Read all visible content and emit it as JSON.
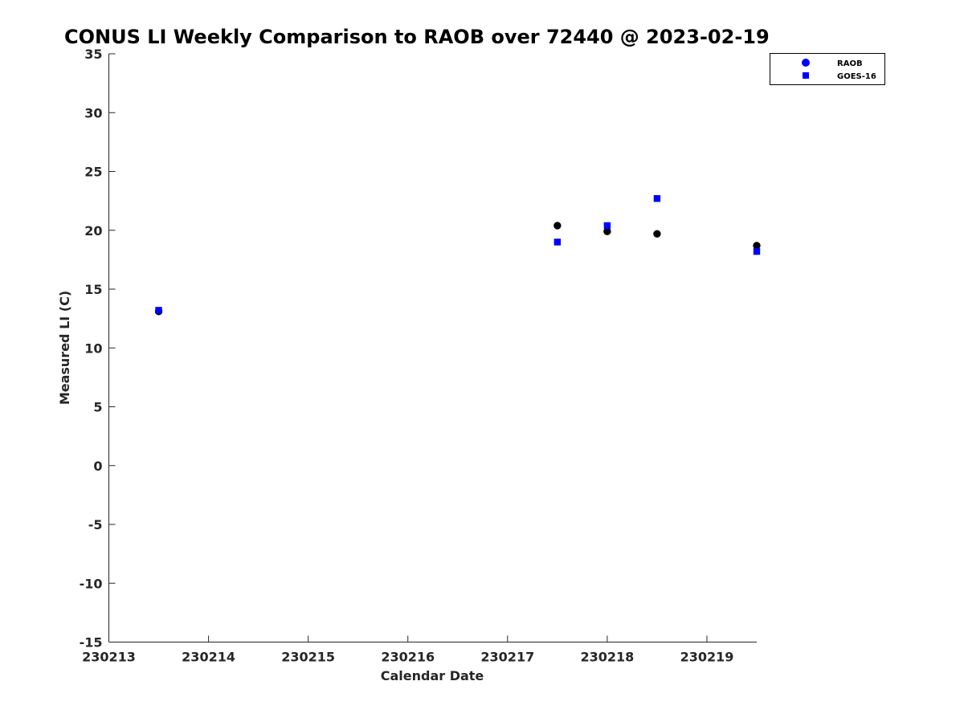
{
  "chart_data": {
    "type": "scatter",
    "title": "CONUS LI Weekly Comparison to RAOB over 72440 @ 2023-02-19",
    "xlabel": "Calendar Date",
    "ylabel": "Measured LI (C)",
    "x_ticks": [
      "230213",
      "230214",
      "230215",
      "230216",
      "230217",
      "230218",
      "230219"
    ],
    "x_tick_values": [
      0,
      1,
      2,
      3,
      4,
      5,
      6
    ],
    "xlim": [
      0,
      6.5
    ],
    "y_ticks": [
      "35",
      "30",
      "25",
      "20",
      "15",
      "10",
      "5",
      "0",
      "-5",
      "-10",
      "-15"
    ],
    "y_tick_values": [
      35,
      30,
      25,
      20,
      15,
      10,
      5,
      0,
      -5,
      -10,
      -15
    ],
    "ylim": [
      -15,
      35
    ],
    "grid": false,
    "legend_position": "top-right",
    "series": [
      {
        "name": "RAOB",
        "marker": "circle",
        "color": "#000000",
        "legend_color": "#0000ff",
        "points": [
          {
            "x": 0.5,
            "y": 13.1
          },
          {
            "x": 4.5,
            "y": 20.4
          },
          {
            "x": 5.0,
            "y": 19.9
          },
          {
            "x": 5.5,
            "y": 19.7
          },
          {
            "x": 6.5,
            "y": 18.7
          }
        ]
      },
      {
        "name": "GOES-16",
        "marker": "square",
        "color": "#0000ff",
        "legend_color": "#0000ff",
        "points": [
          {
            "x": 0.5,
            "y": 13.2
          },
          {
            "x": 4.5,
            "y": 19.0
          },
          {
            "x": 5.0,
            "y": 20.4
          },
          {
            "x": 5.5,
            "y": 22.7
          },
          {
            "x": 6.5,
            "y": 18.2
          }
        ]
      }
    ]
  }
}
